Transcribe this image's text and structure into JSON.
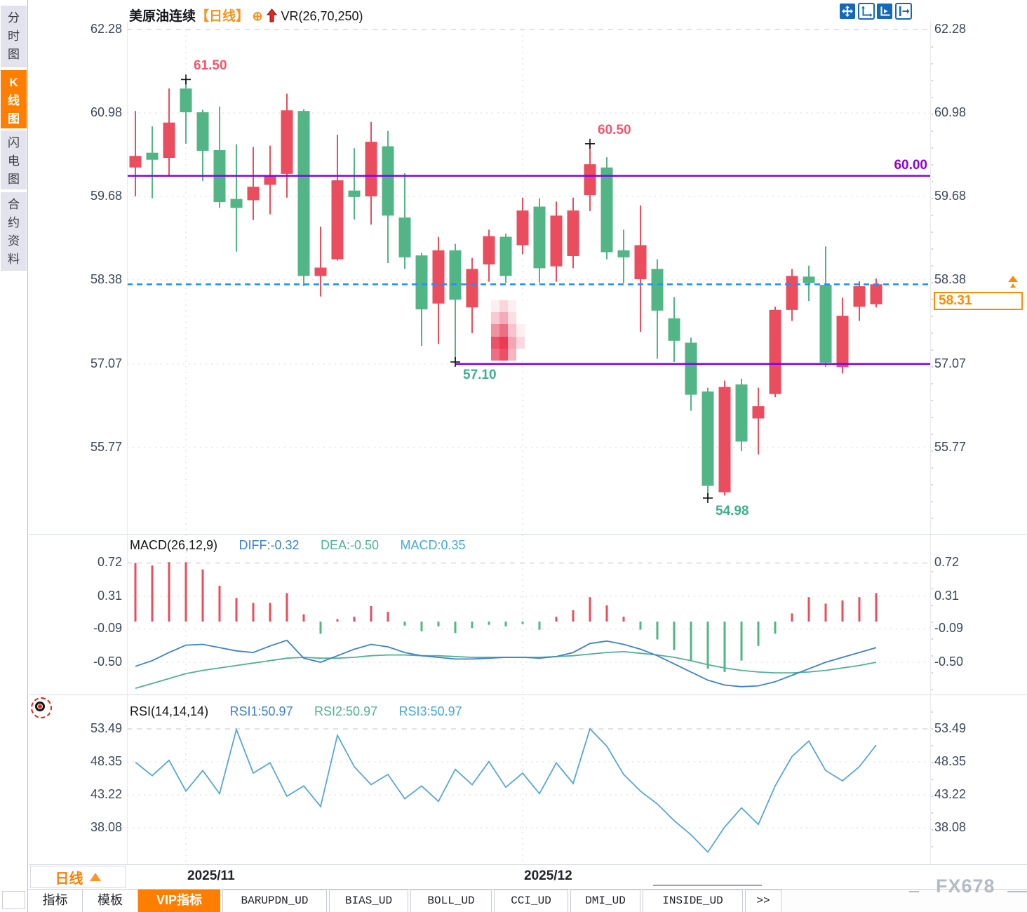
{
  "app": {
    "watermark": "FX678"
  },
  "sidebar": {
    "tabs": [
      {
        "label": "分时图",
        "active": false
      },
      {
        "label": "K线图",
        "active": true
      },
      {
        "label": "闪电图",
        "active": false
      },
      {
        "label": "合约资料",
        "active": false
      }
    ]
  },
  "header": {
    "symbol": "美原油连续",
    "period_tag": "【日线】",
    "plus_icon": "⊕",
    "vr_label": "VR(26,70,250)"
  },
  "toolbar": {
    "icons": [
      {
        "name": "pan-crosshair-icon",
        "filled": true
      },
      {
        "name": "axis-zoom-icon",
        "filled": false
      },
      {
        "name": "axis-play-icon",
        "filled": true
      },
      {
        "name": "export-right-icon",
        "filled": false
      }
    ]
  },
  "period_button": {
    "text": "日线"
  },
  "price_box": {
    "text": "58.31"
  },
  "bottom_tabs": [
    {
      "label": "指标",
      "active": false,
      "mono": false
    },
    {
      "label": "模板",
      "active": false,
      "mono": false
    },
    {
      "label": "VIP指标",
      "active": true,
      "mono": false
    },
    {
      "label": "BARUPDN_UD",
      "active": false,
      "mono": true
    },
    {
      "label": "BIAS_UD",
      "active": false,
      "mono": true
    },
    {
      "label": "BOLL_UD",
      "active": false,
      "mono": true
    },
    {
      "label": "CCI_UD",
      "active": false,
      "mono": true
    },
    {
      "label": "DMI_UD",
      "active": false,
      "mono": true
    },
    {
      "label": "INSIDE_UD",
      "active": false,
      "mono": true
    },
    {
      "label": ">>",
      "active": false,
      "mono": true
    }
  ],
  "colors": {
    "up": "#e94d5e",
    "down": "#52b586",
    "purple_line": "#8400f0",
    "dashed_line": "#1f8fff",
    "accent_orange": "#ff7e00",
    "annotation_red": "#f2566c",
    "annotation_teal": "#3fae8e",
    "hline_label_purple": "#8b00e0",
    "diff_blue": "#3b82cf",
    "dea_green": "#4eb292",
    "macd_cyan": "#45a7e0",
    "rsi_blue": "#55a7d9",
    "axis_text": "#3b4859",
    "grid": "#e2e5ea",
    "grid_dash": "#dfe3e8"
  },
  "mosaic": {
    "cell_colors": [
      "#fdeef1",
      "#fbd5dc",
      "#fdeef1",
      "#ffffff",
      "#f8c9d2",
      "#f4aab8",
      "#fbdde3",
      "#ffffff",
      "#f2919f",
      "#ee6e84",
      "#f8c3cd",
      "#fdeef0",
      "#ee5067",
      "#ec3a56",
      "#f4a4b2",
      "#fbd8de",
      "#f06d81",
      "#ee4d64",
      "#f6b5c0",
      "#ffffff"
    ]
  },
  "chart_data": {
    "type": "candlestick",
    "title": "美原油连续",
    "interval": "日线",
    "x_axis_labels": [
      {
        "text": "2025/11",
        "candle_index": 3
      },
      {
        "text": "2025/12",
        "candle_index": 23
      }
    ],
    "price_ticks": [
      62.28,
      60.98,
      59.68,
      58.38,
      57.07,
      55.77
    ],
    "current_price": 58.31,
    "hlines": [
      {
        "price": 60.0,
        "label": "60.00",
        "from_candle": null
      },
      {
        "price": 57.07,
        "label": null,
        "from_candle": 19
      }
    ],
    "swing_labels": [
      {
        "text": "61.50",
        "candle_index": 3,
        "price": 61.5,
        "placement": "above",
        "color_key": "annotation_red"
      },
      {
        "text": "60.50",
        "candle_index": 27,
        "price": 60.5,
        "placement": "above",
        "color_key": "annotation_red"
      },
      {
        "text": "57.10",
        "candle_index": 19,
        "price": 57.1,
        "placement": "below",
        "color_key": "annotation_teal"
      },
      {
        "text": "54.98",
        "candle_index": 34,
        "price": 54.98,
        "placement": "below",
        "color_key": "annotation_teal"
      }
    ],
    "candles": [
      [
        60.13,
        61.01,
        59.68,
        60.31
      ],
      [
        60.36,
        60.77,
        59.65,
        60.25
      ],
      [
        60.28,
        61.36,
        60.0,
        60.83
      ],
      [
        61.36,
        61.5,
        60.5,
        60.99
      ],
      [
        60.99,
        61.03,
        59.92,
        60.39
      ],
      [
        60.4,
        61.08,
        59.5,
        59.59
      ],
      [
        59.64,
        60.49,
        58.82,
        59.5
      ],
      [
        59.62,
        60.45,
        59.31,
        59.83
      ],
      [
        59.86,
        60.47,
        59.4,
        60.0
      ],
      [
        60.03,
        61.28,
        59.66,
        61.02
      ],
      [
        61.01,
        61.04,
        58.28,
        58.44
      ],
      [
        58.44,
        59.21,
        58.12,
        58.57
      ],
      [
        58.7,
        60.64,
        58.68,
        59.93
      ],
      [
        59.77,
        60.43,
        59.32,
        59.67
      ],
      [
        59.68,
        60.84,
        59.24,
        60.53
      ],
      [
        60.46,
        60.7,
        58.64,
        59.38
      ],
      [
        59.35,
        60.04,
        58.55,
        58.73
      ],
      [
        58.76,
        58.8,
        57.35,
        57.92
      ],
      [
        58.01,
        59.05,
        57.38,
        58.84
      ],
      [
        58.84,
        58.94,
        57.1,
        58.07
      ],
      [
        57.95,
        58.72,
        57.55,
        58.55
      ],
      [
        58.62,
        59.16,
        58.35,
        59.06
      ],
      [
        59.05,
        59.1,
        58.33,
        58.44
      ],
      [
        58.92,
        59.66,
        58.78,
        59.46
      ],
      [
        59.52,
        59.65,
        58.33,
        58.56
      ],
      [
        58.59,
        59.6,
        58.35,
        59.38
      ],
      [
        58.75,
        59.66,
        58.56,
        59.46
      ],
      [
        59.7,
        60.5,
        59.45,
        60.18
      ],
      [
        60.13,
        60.29,
        58.7,
        58.81
      ],
      [
        58.84,
        59.16,
        58.33,
        58.73
      ],
      [
        58.39,
        59.54,
        57.57,
        58.92
      ],
      [
        58.55,
        58.7,
        57.15,
        57.9
      ],
      [
        57.78,
        58.11,
        57.1,
        57.43
      ],
      [
        57.4,
        57.48,
        56.34,
        56.59
      ],
      [
        56.64,
        56.7,
        54.98,
        55.17
      ],
      [
        55.07,
        56.81,
        55.02,
        56.71
      ],
      [
        56.75,
        56.84,
        55.71,
        55.86
      ],
      [
        56.22,
        56.7,
        55.66,
        56.41
      ],
      [
        56.6,
        57.96,
        56.55,
        57.91
      ],
      [
        57.91,
        58.55,
        57.74,
        58.44
      ],
      [
        58.43,
        58.6,
        58.05,
        58.33
      ],
      [
        58.3,
        58.9,
        57.02,
        57.09
      ],
      [
        57.02,
        58.1,
        56.92,
        57.82
      ],
      [
        57.96,
        58.36,
        57.74,
        58.28
      ],
      [
        58.0,
        58.4,
        57.95,
        58.31
      ]
    ],
    "macd": {
      "label": "MACD(26,12,9)",
      "diff_label": "DIFF:-0.32",
      "dea_label": "DEA:-0.50",
      "macd_label": "MACD:0.35",
      "ticks": [
        0.72,
        0.31,
        -0.09,
        -0.5
      ],
      "hist": [
        0.72,
        0.69,
        0.73,
        0.73,
        0.64,
        0.44,
        0.29,
        0.23,
        0.23,
        0.35,
        0.09,
        -0.15,
        0.03,
        0.06,
        0.19,
        0.12,
        -0.05,
        -0.12,
        -0.06,
        -0.14,
        -0.08,
        -0.04,
        -0.06,
        -0.03,
        -0.1,
        0.06,
        0.14,
        0.3,
        0.2,
        0.06,
        -0.1,
        -0.22,
        -0.35,
        -0.48,
        -0.58,
        -0.62,
        -0.48,
        -0.3,
        -0.15,
        0.1,
        0.3,
        0.22,
        0.26,
        0.3,
        0.35
      ],
      "diff": [
        -0.55,
        -0.48,
        -0.38,
        -0.29,
        -0.28,
        -0.32,
        -0.36,
        -0.38,
        -0.3,
        -0.23,
        -0.45,
        -0.5,
        -0.42,
        -0.34,
        -0.28,
        -0.31,
        -0.38,
        -0.42,
        -0.44,
        -0.46,
        -0.46,
        -0.45,
        -0.44,
        -0.44,
        -0.45,
        -0.43,
        -0.38,
        -0.27,
        -0.24,
        -0.28,
        -0.34,
        -0.42,
        -0.52,
        -0.62,
        -0.72,
        -0.78,
        -0.8,
        -0.79,
        -0.74,
        -0.66,
        -0.58,
        -0.5,
        -0.44,
        -0.38,
        -0.32
      ],
      "dea": [
        -0.82,
        -0.76,
        -0.7,
        -0.64,
        -0.6,
        -0.57,
        -0.54,
        -0.51,
        -0.48,
        -0.45,
        -0.44,
        -0.45,
        -0.45,
        -0.44,
        -0.42,
        -0.41,
        -0.41,
        -0.42,
        -0.42,
        -0.43,
        -0.44,
        -0.44,
        -0.44,
        -0.44,
        -0.44,
        -0.43,
        -0.42,
        -0.4,
        -0.38,
        -0.37,
        -0.39,
        -0.41,
        -0.44,
        -0.48,
        -0.53,
        -0.57,
        -0.6,
        -0.62,
        -0.63,
        -0.63,
        -0.62,
        -0.6,
        -0.57,
        -0.54,
        -0.5
      ]
    },
    "rsi": {
      "label": "RSI(14,14,14)",
      "rsi1_label": "RSI1:50.97",
      "rsi2_label": "RSI2:50.97",
      "rsi3_label": "RSI3:50.97",
      "ticks": [
        53.49,
        48.35,
        43.22,
        38.08
      ],
      "values": [
        48.3,
        46.2,
        48.6,
        43.8,
        47.0,
        43.4,
        53.4,
        46.6,
        48.2,
        43.0,
        44.6,
        41.4,
        52.5,
        47.6,
        44.8,
        46.4,
        42.6,
        44.6,
        42.2,
        47.2,
        44.8,
        48.4,
        44.4,
        46.6,
        43.4,
        48.2,
        45.0,
        53.5,
        50.8,
        46.4,
        43.8,
        41.8,
        39.2,
        37.0,
        34.3,
        38.2,
        41.2,
        38.6,
        44.6,
        49.2,
        51.6,
        47.0,
        45.4,
        47.6,
        50.97
      ]
    }
  }
}
